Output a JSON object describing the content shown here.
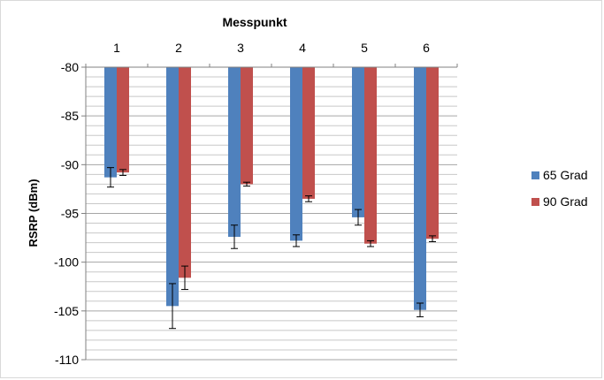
{
  "chart_data": {
    "type": "bar",
    "title": "",
    "xlabel": "Messpunkt",
    "ylabel": "RSRP (dBm)",
    "categories": [
      "1",
      "2",
      "3",
      "4",
      "5",
      "6"
    ],
    "ylim": [
      -110,
      -80
    ],
    "yticks": [
      -80,
      -85,
      -90,
      -95,
      -100,
      -105,
      -110
    ],
    "x_axis_position": "top",
    "grid": true,
    "legend_position": "right",
    "series": [
      {
        "name": "65 Grad",
        "color": "#4f81bd",
        "values": [
          -91.3,
          -104.5,
          -97.4,
          -97.8,
          -95.4,
          -104.9
        ],
        "error": [
          1.0,
          2.3,
          1.2,
          0.6,
          0.8,
          0.7
        ]
      },
      {
        "name": "90 Grad",
        "color": "#c0504d",
        "values": [
          -90.8,
          -101.6,
          -92.0,
          -93.5,
          -98.1,
          -97.6
        ],
        "error": [
          0.3,
          1.2,
          0.2,
          0.3,
          0.3,
          0.3
        ]
      }
    ]
  }
}
